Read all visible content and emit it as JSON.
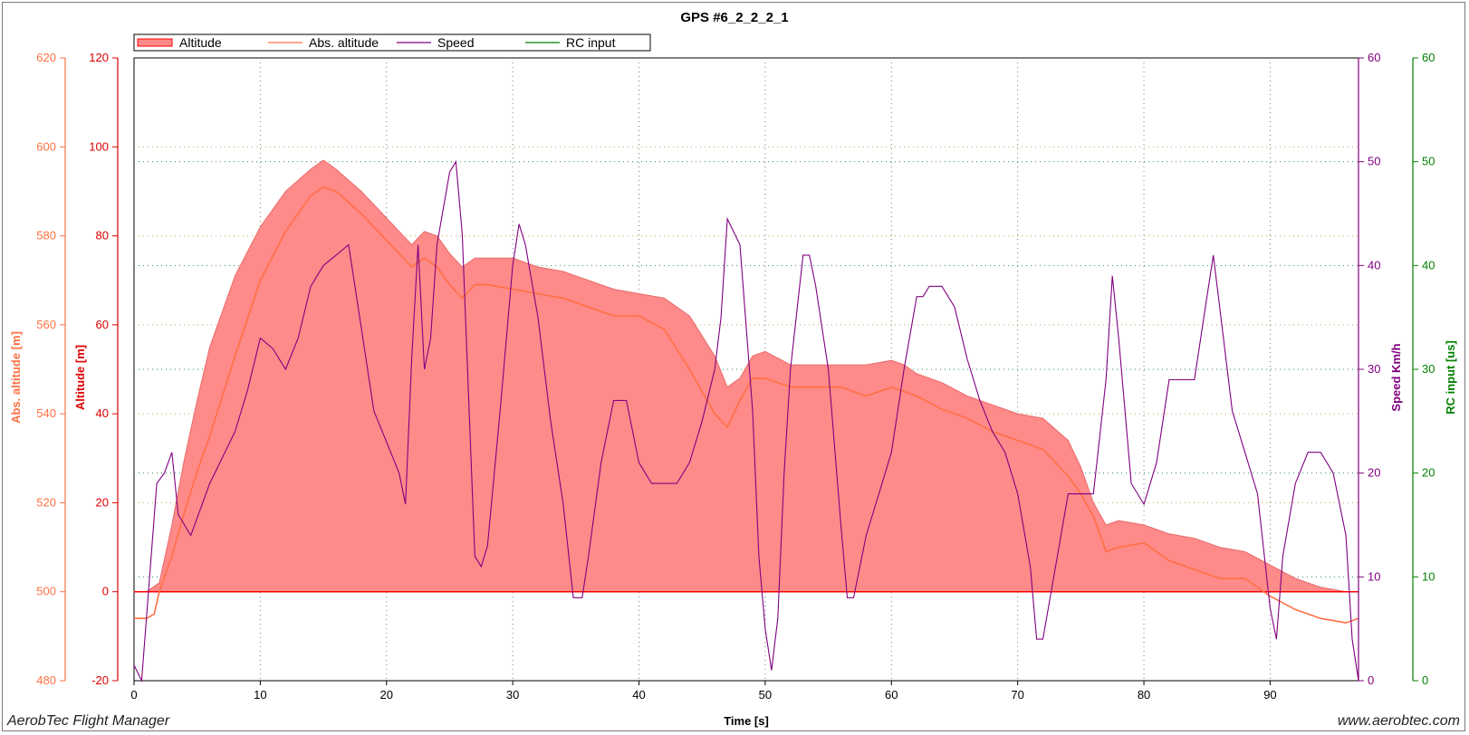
{
  "footer": {
    "left": "AerobTec Flight Manager",
    "right": "www.aerobtec.com"
  },
  "colors": {
    "altitude_fill": "#ff8a8a",
    "altitude_line": "#ff0000",
    "abs_altitude": "#ff7043",
    "speed": "#800080",
    "rc_input": "#008000",
    "grid": "#7a7a7a"
  },
  "chart_data": {
    "type": "area",
    "title": "GPS #6_2_2_2_1",
    "xlabel": "Time [s]",
    "xlim": [
      0,
      97
    ],
    "xticks": [
      0,
      10,
      20,
      30,
      40,
      50,
      60,
      70,
      80,
      90
    ],
    "grid": true,
    "legend_position": "top-left",
    "legend": [
      "Altitude",
      "Abs. altitude",
      "Speed",
      "RC input"
    ],
    "axes": {
      "abs_altitude": {
        "label": "Abs. altitude [m]",
        "side": "left",
        "ylim": [
          480,
          620
        ],
        "ticks": [
          480,
          500,
          520,
          540,
          560,
          580,
          600,
          620
        ]
      },
      "altitude": {
        "label": "Altitude [m]",
        "side": "left",
        "ylim": [
          -20,
          120
        ],
        "ticks": [
          -20,
          0,
          20,
          40,
          60,
          80,
          100,
          120
        ]
      },
      "speed": {
        "label": "Speed Km/h",
        "side": "right",
        "ylim": [
          0,
          60
        ],
        "ticks": [
          0,
          10,
          20,
          30,
          40,
          50,
          60
        ]
      },
      "rc_input": {
        "label": "RC input [us]",
        "side": "right",
        "ylim": [
          0,
          60
        ],
        "ticks": [
          0,
          10,
          20,
          30,
          40,
          50,
          60
        ]
      }
    },
    "series": [
      {
        "name": "Altitude",
        "axis": "altitude",
        "x": [
          0,
          1,
          2,
          3,
          4,
          5,
          6,
          8,
          10,
          12,
          14,
          15,
          16,
          18,
          20,
          22,
          23,
          24,
          25,
          26,
          27,
          28,
          30,
          32,
          34,
          36,
          38,
          40,
          42,
          44,
          46,
          47,
          48,
          49,
          50,
          52,
          54,
          56,
          58,
          60,
          61,
          62,
          64,
          66,
          68,
          70,
          72,
          74,
          75,
          76,
          77,
          78,
          80,
          82,
          84,
          86,
          88,
          90,
          92,
          94,
          96,
          97
        ],
        "y": [
          0,
          0,
          2,
          15,
          30,
          43,
          55,
          71,
          82,
          90,
          95,
          97,
          95,
          90,
          84,
          78,
          81,
          80,
          76,
          73,
          75,
          75,
          75,
          73,
          72,
          70,
          68,
          67,
          66,
          62,
          53,
          46,
          48,
          53,
          54,
          51,
          51,
          51,
          51,
          52,
          51,
          49,
          47,
          44,
          42,
          40,
          39,
          34,
          28,
          20,
          15,
          16,
          15,
          13,
          12,
          10,
          9,
          6,
          3,
          1,
          0,
          0
        ]
      },
      {
        "name": "Abs. altitude",
        "axis": "abs_altitude",
        "x": [
          0,
          1,
          1.6,
          2,
          3,
          4,
          5,
          6,
          8,
          10,
          12,
          14,
          15,
          16,
          18,
          20,
          22,
          23,
          24,
          25,
          26,
          27,
          28,
          30,
          32,
          34,
          36,
          38,
          40,
          42,
          44,
          46,
          47,
          48,
          49,
          50,
          52,
          54,
          56,
          58,
          60,
          62,
          64,
          66,
          68,
          70,
          72,
          74,
          75,
          76,
          77,
          78,
          80,
          82,
          84,
          86,
          88,
          90,
          92,
          94,
          96,
          97
        ],
        "y": [
          494,
          494,
          495,
          500,
          508,
          518,
          527,
          535,
          553,
          570,
          581,
          589,
          591,
          590,
          585,
          579,
          573,
          575,
          573,
          569,
          566,
          569,
          569,
          568,
          567,
          566,
          564,
          562,
          562,
          559,
          550,
          540,
          537,
          543,
          548,
          548,
          546,
          546,
          546,
          544,
          546,
          544,
          541,
          539,
          536,
          534,
          532,
          526,
          522,
          517,
          509,
          510,
          511,
          507,
          505,
          503,
          503,
          499,
          496,
          494,
          493,
          494
        ]
      },
      {
        "name": "Speed",
        "axis": "speed",
        "x": [
          0,
          0.6,
          1.8,
          2.4,
          3,
          3.5,
          4.5,
          6,
          8,
          9,
          10,
          11,
          12,
          13,
          14,
          15,
          16,
          17,
          18,
          19,
          20,
          21,
          21.5,
          22,
          22.5,
          23,
          23.5,
          24,
          25,
          25.5,
          26,
          27,
          27.5,
          28,
          29,
          30,
          30.5,
          31,
          32,
          33,
          34,
          34.8,
          35.5,
          36,
          37,
          38,
          39,
          40,
          41,
          42,
          43,
          44,
          45,
          46,
          46.5,
          47,
          48,
          49,
          49.5,
          50,
          50.5,
          51,
          51.5,
          52,
          53,
          53.5,
          54,
          55,
          56,
          56.5,
          57,
          58,
          59,
          60,
          61,
          62,
          62.5,
          63,
          64,
          65,
          66,
          67,
          68,
          69,
          70,
          71,
          71.5,
          72,
          73,
          74,
          75,
          76,
          77,
          77.5,
          78,
          79,
          80,
          81,
          82,
          83,
          84,
          85,
          85.5,
          86,
          87,
          88,
          89,
          90,
          90.5,
          91,
          92,
          93,
          94,
          95,
          96,
          96.5,
          97
        ],
        "y": [
          1.5,
          0,
          19,
          20,
          22,
          16,
          14,
          19,
          24,
          28,
          33,
          32,
          30,
          33,
          38,
          40,
          41,
          42,
          34,
          26,
          23,
          20,
          17,
          31,
          42,
          30,
          33,
          42,
          49,
          50,
          43,
          12,
          11,
          13,
          26,
          40,
          44,
          42,
          35,
          25,
          17,
          8,
          8,
          12,
          21,
          27,
          27,
          21,
          19,
          19,
          19,
          21,
          25,
          30,
          35,
          44.5,
          42,
          26,
          12,
          5,
          1,
          6,
          20,
          30,
          41,
          41,
          38,
          30,
          15,
          8,
          8,
          14,
          18,
          22,
          30,
          37,
          37,
          38,
          38,
          36,
          31,
          27,
          24,
          22,
          18,
          11,
          4,
          4,
          11,
          18,
          18,
          18,
          29,
          39,
          33,
          19,
          17,
          21,
          29,
          29,
          29,
          37,
          41,
          36,
          26,
          22,
          18,
          7,
          4,
          12,
          19,
          22,
          22,
          20,
          14,
          4,
          0
        ]
      },
      {
        "name": "RC input",
        "axis": "rc_input",
        "x": [],
        "y": []
      }
    ]
  }
}
